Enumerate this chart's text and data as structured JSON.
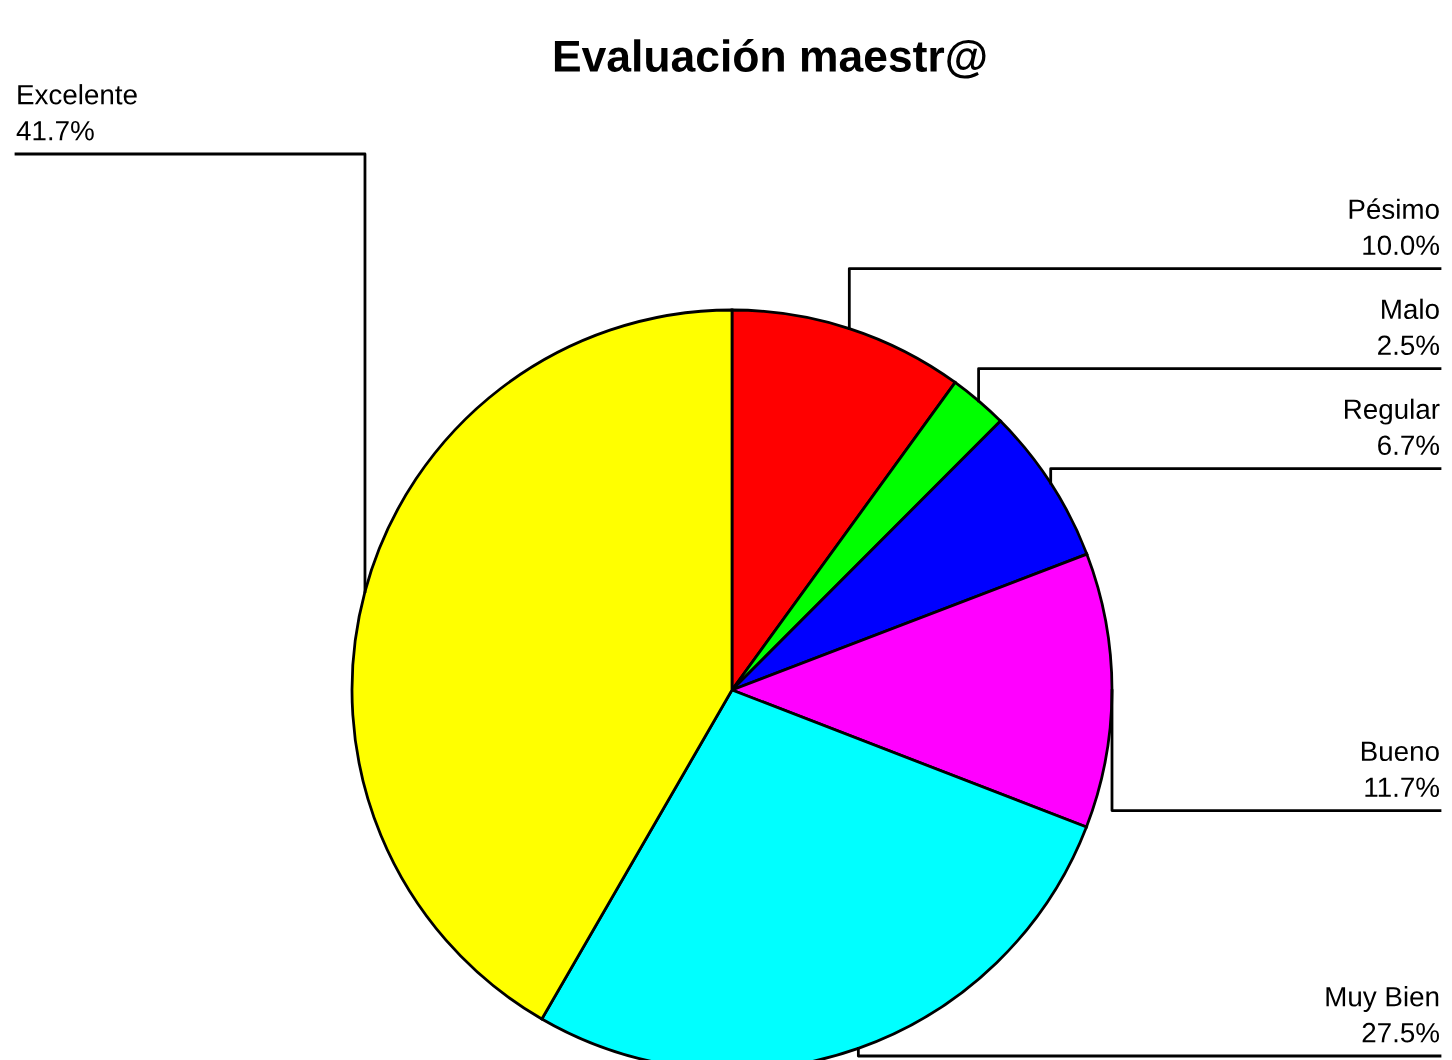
{
  "chart_data": {
    "type": "pie",
    "title": "Evaluación maestr@",
    "categories": [
      "Pésimo",
      "Malo",
      "Regular",
      "Bueno",
      "Muy Bien",
      "Excelente"
    ],
    "values": [
      10.0,
      2.5,
      6.7,
      11.7,
      27.5,
      41.7
    ],
    "colors": [
      "#ff0000",
      "#00ff00",
      "#0000ff",
      "#ff00ff",
      "#00ffff",
      "#ffff00"
    ],
    "value_labels": [
      "10.0%",
      "2.5%",
      "6.7%",
      "11.7%",
      "27.5%",
      "41.7%"
    ]
  }
}
